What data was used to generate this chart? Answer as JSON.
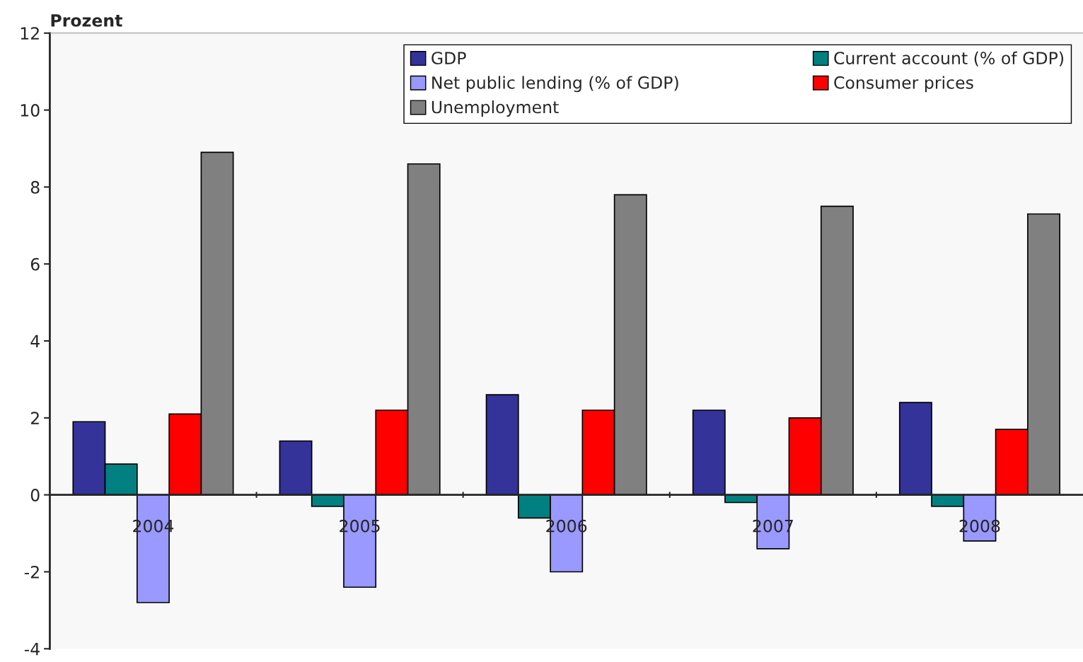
{
  "chart_data": {
    "type": "bar",
    "ylabel": "Prozent",
    "categories": [
      "2004",
      "2005",
      "2006",
      "2007",
      "2008"
    ],
    "series": [
      {
        "name": "GDP",
        "color": "#333399",
        "values": [
          1.9,
          1.4,
          2.6,
          2.2,
          2.4
        ]
      },
      {
        "name": "Current account (% of GDP)",
        "color": "#008080",
        "values": [
          0.8,
          -0.3,
          -0.6,
          -0.2,
          -0.3
        ]
      },
      {
        "name": "Net public lending (% of GDP)",
        "color": "#9999ff",
        "values": [
          -2.8,
          -2.4,
          -2.0,
          -1.4,
          -1.2
        ]
      },
      {
        "name": "Consumer prices",
        "color": "#ff0000",
        "values": [
          2.1,
          2.2,
          2.2,
          2.0,
          1.7
        ]
      },
      {
        "name": "Unemployment",
        "color": "#808080",
        "values": [
          8.9,
          8.6,
          7.8,
          7.5,
          7.3
        ]
      }
    ],
    "ylim": [
      -4,
      12
    ],
    "yticks": [
      -4,
      -2,
      0,
      2,
      4,
      6,
      8,
      10,
      12
    ],
    "grid": false,
    "legend": "top right"
  }
}
